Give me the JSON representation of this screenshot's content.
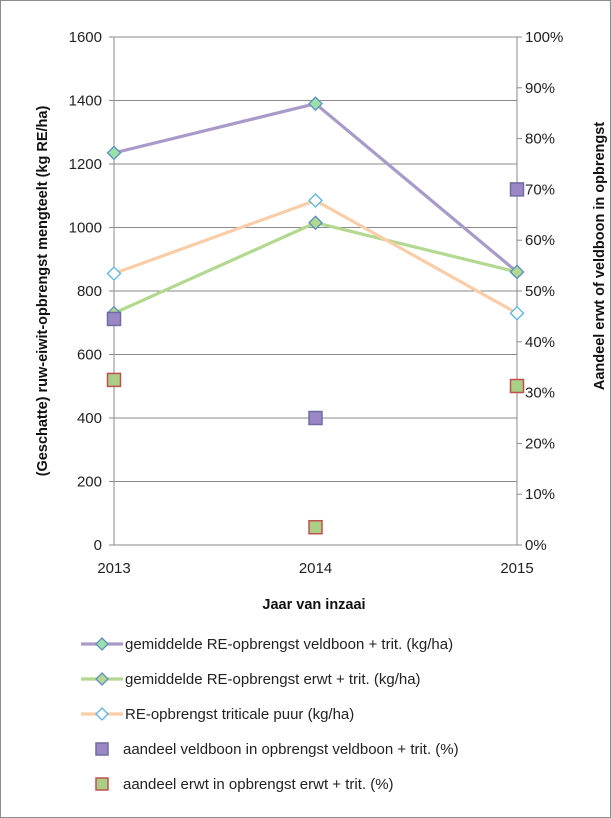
{
  "chart_data": {
    "type": "line",
    "x": [
      "2013",
      "2014",
      "2015"
    ],
    "xlabel": "Jaar van inzaai",
    "ylabel_left": "(Geschatte) ruw-eiwit-opbrengst  mengteelt (kg RE/ha)",
    "ylabel_right": "Aandeel erwt of veldboon in opbrengst",
    "ylim_left": [
      0,
      1600
    ],
    "ylim_right": [
      0,
      100
    ],
    "yticks_left": [
      "0",
      "200",
      "400",
      "600",
      "800",
      "1000",
      "1200",
      "1400",
      "1600"
    ],
    "yticks_right": [
      "0%",
      "10%",
      "20%",
      "30%",
      "40%",
      "50%",
      "60%",
      "70%",
      "80%",
      "90%",
      "100%"
    ],
    "grid": true,
    "legend_position": "bottom",
    "series": [
      {
        "name": "gemiddelde RE-opbrengst veldboon + trit. (kg/ha)",
        "axis": "left",
        "kind": "line",
        "values": [
          1235,
          1390,
          860
        ],
        "line_color": "#a99ac9",
        "marker_fill": "#9be0aa",
        "marker_stroke": "#5a8fbf"
      },
      {
        "name": "gemiddelde RE-opbrengst erwt + trit. (kg/ha)",
        "axis": "left",
        "kind": "line",
        "values": [
          730,
          1015,
          860
        ],
        "line_color": "#b3d88f",
        "marker_fill": "#b3d88f",
        "marker_stroke": "#5a8fbf"
      },
      {
        "name": "RE-opbrengst triticale puur (kg/ha)",
        "axis": "left",
        "kind": "line",
        "values": [
          855,
          1085,
          730
        ],
        "line_color": "#f9cda8",
        "marker_fill": "#ffffff",
        "marker_stroke": "#5ab4e0"
      },
      {
        "name": "aandeel veldboon in opbrengst veldboon + trit. (%)",
        "axis": "right",
        "kind": "marker",
        "values": [
          44.5,
          25,
          70
        ],
        "marker_fill": "#9b87c6",
        "marker_stroke": "#6e6e9e"
      },
      {
        "name": "aandeel erwt in opbrengst erwt + trit. (%)",
        "axis": "right",
        "kind": "marker",
        "values": [
          32.5,
          3.5,
          31.3
        ],
        "marker_fill": "#a9cf86",
        "marker_stroke": "#c0504d"
      }
    ]
  }
}
